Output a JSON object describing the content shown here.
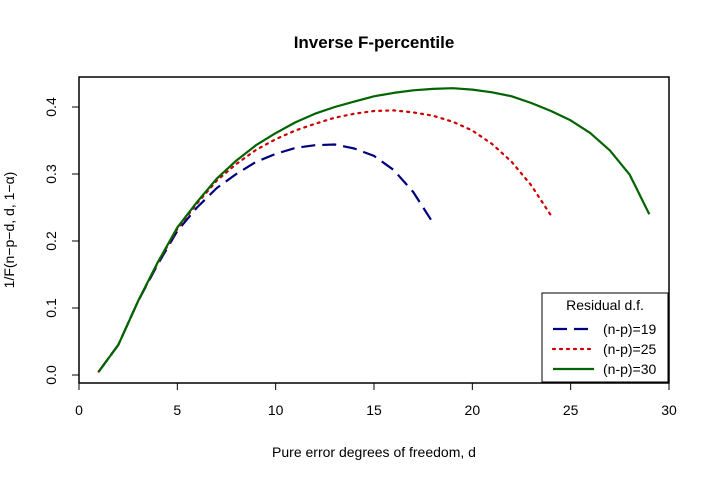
{
  "chart_data": {
    "type": "line",
    "title": "Inverse F-percentile",
    "xlabel": "Pure error degrees of freedom, d",
    "ylabel": "1/F(n−p−d, d, 1−α)",
    "xlim": [
      0,
      30
    ],
    "ylim": [
      0,
      0.45
    ],
    "x_ticks": [
      "0",
      "5",
      "10",
      "15",
      "20",
      "25",
      "30"
    ],
    "y_ticks": [
      "0.0",
      "0.1",
      "0.2",
      "0.3",
      "0.4"
    ],
    "grid": false,
    "legend": {
      "title": "Residual d.f.",
      "position": "bottom-right"
    },
    "series": [
      {
        "name": "(n-p)=19",
        "color": "#00007f",
        "style": "dashed",
        "x": [
          1,
          2,
          3,
          4,
          5,
          6,
          7,
          8,
          9,
          10,
          11,
          12,
          13,
          14,
          15,
          16,
          17,
          18
        ],
        "y": [
          0.005,
          0.045,
          0.11,
          0.165,
          0.215,
          0.25,
          0.279,
          0.3,
          0.318,
          0.33,
          0.339,
          0.343,
          0.344,
          0.338,
          0.327,
          0.306,
          0.273,
          0.227
        ]
      },
      {
        "name": "(n-p)=25",
        "color": "#cc0000",
        "style": "dotted",
        "x": [
          1,
          2,
          3,
          4,
          5,
          6,
          7,
          8,
          9,
          10,
          11,
          12,
          13,
          14,
          15,
          16,
          17,
          18,
          19,
          20,
          21,
          22,
          23,
          24
        ],
        "y": [
          0.005,
          0.045,
          0.11,
          0.167,
          0.218,
          0.256,
          0.29,
          0.315,
          0.336,
          0.352,
          0.365,
          0.375,
          0.384,
          0.39,
          0.394,
          0.395,
          0.392,
          0.387,
          0.378,
          0.365,
          0.345,
          0.318,
          0.283,
          0.238
        ]
      },
      {
        "name": "(n-p)=30",
        "color": "#006400",
        "style": "solid",
        "x": [
          1,
          2,
          3,
          4,
          5,
          6,
          7,
          8,
          9,
          10,
          11,
          12,
          13,
          14,
          15,
          16,
          17,
          18,
          19,
          20,
          21,
          22,
          23,
          24,
          25,
          26,
          27,
          28,
          29
        ],
        "y": [
          0.005,
          0.045,
          0.11,
          0.168,
          0.22,
          0.258,
          0.293,
          0.32,
          0.343,
          0.361,
          0.377,
          0.39,
          0.4,
          0.408,
          0.416,
          0.421,
          0.425,
          0.427,
          0.428,
          0.426,
          0.422,
          0.416,
          0.406,
          0.394,
          0.38,
          0.361,
          0.335,
          0.299,
          0.24
        ]
      }
    ]
  }
}
